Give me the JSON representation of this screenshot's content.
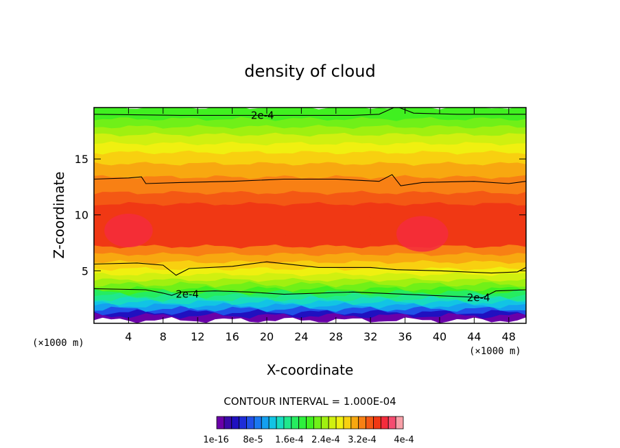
{
  "chart_data": {
    "type": "heatmap",
    "title": "density of cloud",
    "xlabel": "X-coordinate",
    "ylabel": "Z-coordinate",
    "x_unit_left": "(×1000 m)",
    "x_unit_right": "(×1000 m)",
    "xlim": [
      0,
      50
    ],
    "ylim": [
      0.3,
      19.6
    ],
    "x_ticks": [
      4,
      8,
      12,
      16,
      20,
      24,
      28,
      32,
      36,
      40,
      44,
      48
    ],
    "y_ticks": [
      5,
      10,
      15
    ],
    "contour_interval_text": "CONTOUR INTERVAL = 1.000E-04",
    "contour_label": "2e-4",
    "contour_label_positions": [
      {
        "x": 19.5,
        "y": 18.9
      },
      {
        "x": 10.8,
        "y": 2.9
      },
      {
        "x": 44.5,
        "y": 2.6
      }
    ],
    "colorbar": {
      "colors": [
        "#6a00a8",
        "#3a0aa8",
        "#2010c0",
        "#1e2cd8",
        "#2050e8",
        "#1a78f0",
        "#14a0f0",
        "#12c4e4",
        "#18dcc0",
        "#20e88c",
        "#26ec60",
        "#2ef03c",
        "#40f020",
        "#70f018",
        "#a0f010",
        "#d0f010",
        "#f0f010",
        "#f8d010",
        "#f8a810",
        "#f88014",
        "#f45814",
        "#f03814",
        "#f42c3c",
        "#f64c70",
        "#f8a0a8"
      ],
      "tick_labels": [
        "1e-16",
        "8e-5",
        "1.6e-4",
        "2.4e-4",
        "3.2e-4",
        "4e-4"
      ]
    },
    "layers": [
      {
        "z_bottom": 0.6,
        "z_top": 1.0,
        "color": "#6a00a8"
      },
      {
        "z_bottom": 1.0,
        "z_top": 1.3,
        "color": "#2010c0"
      },
      {
        "z_bottom": 1.3,
        "z_top": 1.6,
        "color": "#2050e8"
      },
      {
        "z_bottom": 1.6,
        "z_top": 1.9,
        "color": "#14a0f0"
      },
      {
        "z_bottom": 1.9,
        "z_top": 2.2,
        "color": "#12c4e4"
      },
      {
        "z_bottom": 2.2,
        "z_top": 2.5,
        "color": "#18dcc0"
      },
      {
        "z_bottom": 2.5,
        "z_top": 2.8,
        "color": "#20e88c"
      },
      {
        "z_bottom": 2.8,
        "z_top": 3.1,
        "color": "#26ec60"
      },
      {
        "z_bottom": 3.1,
        "z_top": 3.4,
        "color": "#40f020"
      },
      {
        "z_bottom": 3.4,
        "z_top": 3.8,
        "color": "#70f018"
      },
      {
        "z_bottom": 3.8,
        "z_top": 4.2,
        "color": "#a0f010"
      },
      {
        "z_bottom": 4.2,
        "z_top": 4.7,
        "color": "#d0f010"
      },
      {
        "z_bottom": 4.7,
        "z_top": 5.2,
        "color": "#f0f010"
      },
      {
        "z_bottom": 5.2,
        "z_top": 5.8,
        "color": "#f8d010"
      },
      {
        "z_bottom": 5.8,
        "z_top": 6.5,
        "color": "#f8a810"
      },
      {
        "z_bottom": 6.5,
        "z_top": 7.2,
        "color": "#f88014"
      },
      {
        "z_bottom": 7.2,
        "z_top": 11.0,
        "color": "#f03814"
      },
      {
        "z_bottom": 11.0,
        "z_top": 12.0,
        "color": "#f45814"
      },
      {
        "z_bottom": 12.0,
        "z_top": 13.4,
        "color": "#f88014"
      },
      {
        "z_bottom": 13.4,
        "z_top": 14.6,
        "color": "#f8a810"
      },
      {
        "z_bottom": 14.6,
        "z_top": 15.6,
        "color": "#f8d010"
      },
      {
        "z_bottom": 15.6,
        "z_top": 16.4,
        "color": "#f0f010"
      },
      {
        "z_bottom": 16.4,
        "z_top": 17.2,
        "color": "#d0f010"
      },
      {
        "z_bottom": 17.2,
        "z_top": 17.9,
        "color": "#a0f010"
      },
      {
        "z_bottom": 17.9,
        "z_top": 18.6,
        "color": "#70f018"
      },
      {
        "z_bottom": 18.6,
        "z_top": 19.6,
        "color": "#40f020"
      }
    ],
    "core_patches": [
      {
        "x": 4.0,
        "y": 8.6,
        "rx": 2.8,
        "ry": 1.5,
        "color": "#f42c3c"
      },
      {
        "x": 38.0,
        "y": 8.3,
        "rx": 3.0,
        "ry": 1.6,
        "color": "#f42c3c"
      },
      {
        "x": 27.0,
        "y": 9.0,
        "rx": 6.0,
        "ry": 1.4,
        "color": "#f03814"
      }
    ],
    "contour_lines": [
      {
        "points": [
          [
            0,
            19.0
          ],
          [
            10,
            18.9
          ],
          [
            20,
            18.9
          ],
          [
            30,
            18.9
          ],
          [
            33,
            19.0
          ],
          [
            35,
            19.7
          ],
          [
            37,
            19.1
          ],
          [
            42,
            19.0
          ],
          [
            50,
            19.0
          ]
        ]
      },
      {
        "points": [
          [
            0,
            13.2
          ],
          [
            4,
            13.3
          ],
          [
            5.5,
            13.4
          ],
          [
            6,
            12.8
          ],
          [
            10,
            12.9
          ],
          [
            16,
            13.0
          ],
          [
            22,
            13.2
          ],
          [
            28,
            13.2
          ],
          [
            33,
            13.0
          ],
          [
            34.5,
            13.6
          ],
          [
            35.5,
            12.6
          ],
          [
            38,
            12.9
          ],
          [
            44,
            13.0
          ],
          [
            48,
            12.8
          ],
          [
            50,
            13.0
          ]
        ]
      },
      {
        "points": [
          [
            0,
            5.6
          ],
          [
            5,
            5.7
          ],
          [
            8,
            5.5
          ],
          [
            9.5,
            4.6
          ],
          [
            11,
            5.2
          ],
          [
            16,
            5.4
          ],
          [
            20,
            5.8
          ],
          [
            26,
            5.3
          ],
          [
            32,
            5.3
          ],
          [
            35,
            5.1
          ],
          [
            40,
            5.0
          ],
          [
            46,
            4.8
          ],
          [
            49,
            4.9
          ],
          [
            50,
            5.3
          ]
        ]
      },
      {
        "points": [
          [
            0,
            3.4
          ],
          [
            6,
            3.3
          ],
          [
            8,
            3.0
          ],
          [
            9,
            2.8
          ],
          [
            10,
            3.1
          ],
          [
            14,
            3.2
          ],
          [
            18,
            3.1
          ],
          [
            22,
            2.9
          ],
          [
            30,
            3.1
          ],
          [
            36,
            2.9
          ],
          [
            42,
            2.7
          ],
          [
            45,
            2.6
          ],
          [
            46.5,
            3.2
          ],
          [
            50,
            3.3
          ]
        ]
      }
    ]
  }
}
